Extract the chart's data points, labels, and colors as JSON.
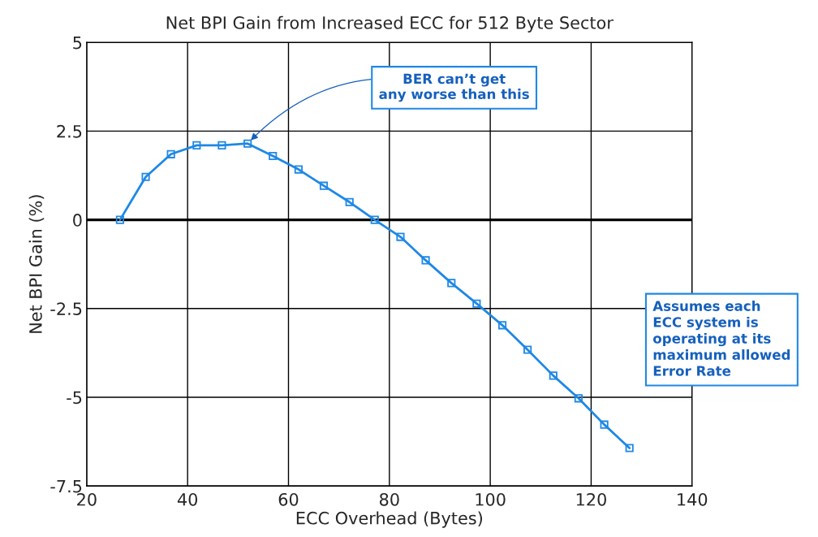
{
  "chart_data": {
    "type": "line",
    "title": "Net BPI Gain from Increased ECC for 512 Byte Sector",
    "xlabel": "ECC Overhead (Bytes)",
    "ylabel": "Net BPI Gain (%)",
    "x": [
      26.6,
      31.7,
      36.7,
      41.8,
      46.8,
      51.9,
      56.9,
      62.0,
      67.0,
      72.1,
      77.1,
      82.2,
      87.2,
      92.3,
      97.3,
      102.4,
      107.4,
      112.5,
      117.5,
      122.6,
      127.6
    ],
    "series": [
      {
        "color": "#1e88e5",
        "values": [
          0,
          1.21,
          1.85,
          2.1,
          2.1,
          2.15,
          1.8,
          1.42,
          0.96,
          0.5,
          0,
          -0.48,
          -1.14,
          -1.78,
          -2.36,
          -2.97,
          -3.66,
          -4.39,
          -5.03,
          -5.77,
          -6.43
        ]
      }
    ],
    "xlim": [
      20,
      140
    ],
    "xticks": [
      20,
      40,
      60,
      80,
      100,
      120,
      140
    ],
    "ylim": [
      -7.5,
      5
    ],
    "yticks": [
      {
        "value": -7.5,
        "label": "-7.5"
      },
      {
        "value": -5,
        "label": "-5"
      },
      {
        "value": -2.5,
        "label": "-2.5"
      },
      0,
      2.5,
      5
    ],
    "ref_lines": [
      {
        "axis": "y",
        "value": 0,
        "color": "#000000"
      }
    ],
    "annotations": [
      {
        "text": "BER can’t get\nany worse than this",
        "x": 51.9,
        "y": 2.15
      },
      "Assumes each\nECC system is\noperating at its\nmaximum allowed\nError Rate"
    ],
    "grid": true,
    "marker": "square",
    "line_style": "solid",
    "legend": false
  }
}
